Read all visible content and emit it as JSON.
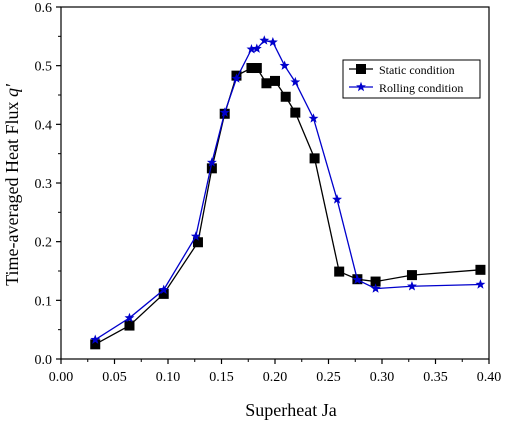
{
  "chart_data": {
    "type": "line",
    "xlabel": "Superheat  Ja",
    "ylabel": "Time-averaged Heat Flux ",
    "ylabel_symbol": "q'",
    "xlim": [
      0.0,
      0.4
    ],
    "ylim": [
      0.0,
      0.6
    ],
    "x_ticks": [
      "0.00",
      "0.05",
      "0.10",
      "0.15",
      "0.20",
      "0.25",
      "0.30",
      "0.35",
      "0.40"
    ],
    "y_ticks": [
      "0.0",
      "0.1",
      "0.2",
      "0.3",
      "0.4",
      "0.5",
      "0.6"
    ],
    "grid": false,
    "legend_position": "top-right",
    "series": [
      {
        "name": "Static condition",
        "color": "#000000",
        "marker": "square",
        "points": [
          [
            0.032,
            0.025
          ],
          [
            0.064,
            0.057
          ],
          [
            0.096,
            0.111
          ],
          [
            0.128,
            0.199
          ],
          [
            0.141,
            0.325
          ],
          [
            0.153,
            0.418
          ],
          [
            0.164,
            0.483
          ],
          [
            0.178,
            0.496
          ],
          [
            0.183,
            0.496
          ],
          [
            0.192,
            0.47
          ],
          [
            0.2,
            0.474
          ],
          [
            0.21,
            0.447
          ],
          [
            0.219,
            0.42
          ],
          [
            0.237,
            0.342
          ],
          [
            0.26,
            0.149
          ],
          [
            0.277,
            0.136
          ],
          [
            0.294,
            0.132
          ],
          [
            0.328,
            0.143
          ],
          [
            0.392,
            0.152
          ]
        ]
      },
      {
        "name": "Rolling condition",
        "color": "#0000cc",
        "marker": "star",
        "points": [
          [
            0.032,
            0.033
          ],
          [
            0.064,
            0.07
          ],
          [
            0.096,
            0.118
          ],
          [
            0.126,
            0.209
          ],
          [
            0.141,
            0.335
          ],
          [
            0.153,
            0.42
          ],
          [
            0.164,
            0.478
          ],
          [
            0.178,
            0.528
          ],
          [
            0.183,
            0.529
          ],
          [
            0.19,
            0.543
          ],
          [
            0.198,
            0.54
          ],
          [
            0.209,
            0.5
          ],
          [
            0.219,
            0.472
          ],
          [
            0.236,
            0.41
          ],
          [
            0.258,
            0.272
          ],
          [
            0.277,
            0.135
          ],
          [
            0.294,
            0.12
          ],
          [
            0.328,
            0.124
          ],
          [
            0.392,
            0.127
          ]
        ]
      }
    ]
  }
}
